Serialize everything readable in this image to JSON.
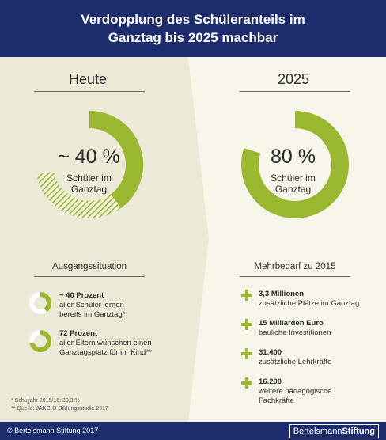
{
  "header": {
    "title_line1": "Verdopplung des Schüleranteils im",
    "title_line2": "Ganztag bis 2025 machbar"
  },
  "colors": {
    "navy": "#1c2c6c",
    "green": "#9ab730",
    "left_bg": "#ece9d7",
    "right_bg": "#f8f6ea"
  },
  "left": {
    "title": "Heute",
    "big": "~ 40 %",
    "sub1": "Schüler im",
    "sub2": "Ganztag",
    "section_title": "Ausgangssituation",
    "items": [
      {
        "bold": "~ 40 Prozent",
        "line1": "aller Schüler lernen",
        "line2": "bereits im Ganztag*"
      },
      {
        "bold": "72 Prozent",
        "line1": "aller Eltern wünschen einen",
        "line2": "Ganztagsplatz für ihr Kind**"
      }
    ]
  },
  "right": {
    "title": "2025",
    "big": "80 %",
    "sub1": "Schüler im",
    "sub2": "Ganztag",
    "section_title": "Mehrbedarf zu 2015",
    "items": [
      {
        "bold": "3,3 Millionen",
        "line1": "zusätzliche Plätze im Ganztag",
        "line2": ""
      },
      {
        "bold": "15 Milliarden Euro",
        "line1": "bauliche Investitionen",
        "line2": ""
      },
      {
        "bold": "31.400",
        "line1": "zusätzliche Lehrkräfte",
        "line2": ""
      },
      {
        "bold": "16.200",
        "line1": "weitere pädagogische",
        "line2": "Fachkräfte"
      }
    ]
  },
  "notes": {
    "line1": "*  Schuljahr 2015/16: 39,3 %",
    "line2": "** Quelle: JAKO-O-Bildungsstudie 2017"
  },
  "footer": {
    "left": "© Bertelsmann Stiftung 2017",
    "right_a": "Bertelsmann",
    "right_b": "Stiftung"
  },
  "chart_data": [
    {
      "type": "pie",
      "title": "Heute",
      "segments": [
        {
          "label": "Schüler im Ganztag",
          "value": 40,
          "style": "solid"
        },
        {
          "label": "",
          "value": 32,
          "style": "hatched"
        },
        {
          "label": "",
          "value": 28,
          "style": "empty"
        }
      ]
    },
    {
      "type": "pie",
      "title": "2025",
      "segments": [
        {
          "label": "Schüler im Ganztag",
          "value": 80,
          "style": "solid"
        },
        {
          "label": "",
          "value": 20,
          "style": "empty"
        }
      ]
    }
  ]
}
